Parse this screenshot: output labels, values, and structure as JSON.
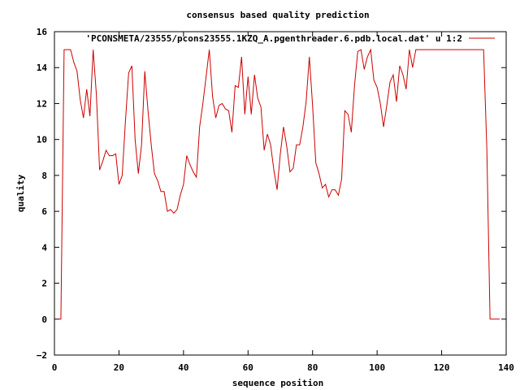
{
  "chart_data": {
    "type": "line",
    "title": "consensus based quality prediction",
    "xlabel": "sequence position",
    "ylabel": "quality",
    "xlim": [
      0,
      140
    ],
    "ylim": [
      -2,
      16
    ],
    "xticks": [
      0,
      20,
      40,
      60,
      80,
      100,
      120,
      140
    ],
    "yticks": [
      -2,
      0,
      2,
      4,
      6,
      8,
      10,
      12,
      14,
      16
    ],
    "grid": false,
    "legend_position": "top-right",
    "series": [
      {
        "name": "'PCONSMETA/23555/pcons23555.1KZQ_A.pgenthreader.6.pdb.local.dat' u 1:2",
        "color": "#cc0000",
        "points": [
          [
            1,
            0
          ],
          [
            2,
            0
          ],
          [
            3,
            15
          ],
          [
            4,
            15
          ],
          [
            5,
            15
          ],
          [
            6,
            14.3
          ],
          [
            7,
            13.8
          ],
          [
            8,
            12.2
          ],
          [
            9,
            11.2
          ],
          [
            10,
            12.8
          ],
          [
            11,
            11.3
          ],
          [
            12,
            15
          ],
          [
            13,
            12.5
          ],
          [
            14,
            8.3
          ],
          [
            15,
            8.8
          ],
          [
            16,
            9.4
          ],
          [
            17,
            9.1
          ],
          [
            18,
            9.1
          ],
          [
            19,
            9.2
          ],
          [
            20,
            7.5
          ],
          [
            21,
            8.0
          ],
          [
            22,
            11.0
          ],
          [
            23,
            13.7
          ],
          [
            24,
            14.1
          ],
          [
            25,
            10.0
          ],
          [
            26,
            8.1
          ],
          [
            27,
            9.7
          ],
          [
            28,
            13.8
          ],
          [
            29,
            11.6
          ],
          [
            30,
            9.7
          ],
          [
            31,
            8.1
          ],
          [
            32,
            7.7
          ],
          [
            33,
            7.1
          ],
          [
            34,
            7.1
          ],
          [
            35,
            6.0
          ],
          [
            36,
            6.1
          ],
          [
            37,
            5.9
          ],
          [
            38,
            6.1
          ],
          [
            39,
            6.9
          ],
          [
            40,
            7.5
          ],
          [
            41,
            9.1
          ],
          [
            42,
            8.6
          ],
          [
            43,
            8.2
          ],
          [
            44,
            7.9
          ],
          [
            45,
            10.7
          ],
          [
            46,
            12.0
          ],
          [
            47,
            13.5
          ],
          [
            48,
            15.0
          ],
          [
            49,
            12.4
          ],
          [
            50,
            11.2
          ],
          [
            51,
            11.9
          ],
          [
            52,
            12.0
          ],
          [
            53,
            11.7
          ],
          [
            54,
            11.6
          ],
          [
            55,
            10.4
          ],
          [
            56,
            13.0
          ],
          [
            57,
            12.9
          ],
          [
            58,
            14.6
          ],
          [
            59,
            11.4
          ],
          [
            60,
            13.5
          ],
          [
            61,
            11.4
          ],
          [
            62,
            13.6
          ],
          [
            63,
            12.3
          ],
          [
            64,
            11.8
          ],
          [
            65,
            9.4
          ],
          [
            66,
            10.3
          ],
          [
            67,
            9.7
          ],
          [
            68,
            8.3
          ],
          [
            69,
            7.2
          ],
          [
            70,
            9.2
          ],
          [
            71,
            10.7
          ],
          [
            72,
            9.6
          ],
          [
            73,
            8.2
          ],
          [
            74,
            8.4
          ],
          [
            75,
            9.7
          ],
          [
            76,
            9.7
          ],
          [
            77,
            10.7
          ],
          [
            78,
            12.1
          ],
          [
            79,
            14.6
          ],
          [
            80,
            11.9
          ],
          [
            81,
            8.7
          ],
          [
            82,
            8.1
          ],
          [
            83,
            7.3
          ],
          [
            84,
            7.5
          ],
          [
            85,
            6.8
          ],
          [
            86,
            7.2
          ],
          [
            87,
            7.2
          ],
          [
            88,
            6.9
          ],
          [
            89,
            7.8
          ],
          [
            90,
            11.6
          ],
          [
            91,
            11.4
          ],
          [
            92,
            10.4
          ],
          [
            93,
            13.0
          ],
          [
            94,
            14.9
          ],
          [
            95,
            15.0
          ],
          [
            96,
            13.9
          ],
          [
            97,
            14.6
          ],
          [
            98,
            15.0
          ],
          [
            99,
            13.3
          ],
          [
            100,
            12.9
          ],
          [
            101,
            12.0
          ],
          [
            102,
            10.7
          ],
          [
            103,
            11.9
          ],
          [
            104,
            13.2
          ],
          [
            105,
            13.6
          ],
          [
            106,
            12.1
          ],
          [
            107,
            14.1
          ],
          [
            108,
            13.6
          ],
          [
            109,
            12.8
          ],
          [
            110,
            15.0
          ],
          [
            111,
            14.0
          ],
          [
            112,
            15.0
          ],
          [
            113,
            15.0
          ],
          [
            114,
            15.0
          ],
          [
            115,
            15.0
          ],
          [
            120,
            15.0
          ],
          [
            125,
            15.0
          ],
          [
            130,
            15.0
          ],
          [
            133,
            15.0
          ],
          [
            134,
            9.5
          ],
          [
            135,
            0
          ],
          [
            136,
            0
          ],
          [
            137,
            0
          ],
          [
            138,
            0
          ]
        ]
      }
    ]
  }
}
